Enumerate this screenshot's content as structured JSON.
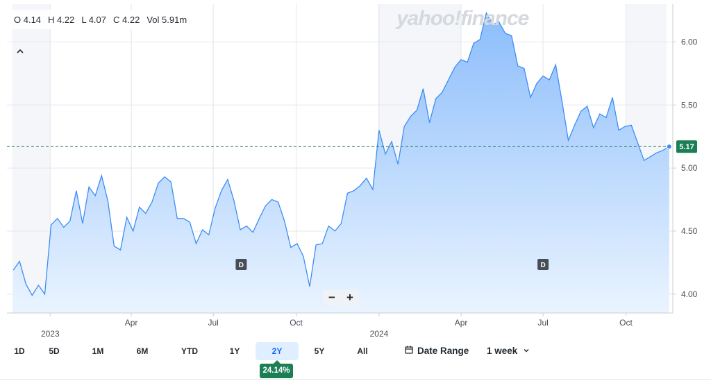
{
  "ohlc": {
    "open": "O 4.14",
    "high": "H 4.22",
    "low": "L 4.07",
    "close": "C 4.22",
    "volume": "Vol 5.91m"
  },
  "watermark": "yahoo!finance",
  "zoom": {
    "minus": "−",
    "plus": "+"
  },
  "ranges": [
    {
      "label": "1D",
      "active": false
    },
    {
      "label": "5D",
      "active": false
    },
    {
      "label": "1M",
      "active": false
    },
    {
      "label": "6M",
      "active": false
    },
    {
      "label": "YTD",
      "active": false
    },
    {
      "label": "1Y",
      "active": false
    },
    {
      "label": "2Y",
      "active": true
    },
    {
      "label": "5Y",
      "active": false
    },
    {
      "label": "All",
      "active": false
    }
  ],
  "performance_badge": "24.14%",
  "date_range_label": "Date Range",
  "interval_label": "1 week",
  "icons": {
    "collapse": "chevron-up-icon",
    "calendar": "calendar-icon",
    "dropdown": "chevron-down-icon"
  },
  "colors": {
    "line": "#3d8df5",
    "fill_top": "#8cbdfb",
    "fill_bottom": "#eaf4ff",
    "price_badge": "#1a7f55",
    "reference": "#1a7f55",
    "shade": "#f4f6f9"
  },
  "chart_data": {
    "type": "area",
    "ylim": [
      3.85,
      6.3
    ],
    "y_ticks": [
      4.0,
      4.5,
      5.0,
      5.5,
      6.0
    ],
    "y_tick_labels": [
      "4.00",
      "4.50",
      "5.00",
      "5.50",
      "6.00"
    ],
    "x_tick_labels": [
      {
        "label": "2023",
        "date": "2023-01-01"
      },
      {
        "label": "Apr",
        "date": "2023-04-01"
      },
      {
        "label": "Jul",
        "date": "2023-07-01"
      },
      {
        "label": "Oct",
        "date": "2023-10-01"
      },
      {
        "label": "2024",
        "date": "2024-01-01"
      },
      {
        "label": "Apr",
        "date": "2024-04-01"
      },
      {
        "label": "Jul",
        "date": "2024-07-01"
      },
      {
        "label": "Oct",
        "date": "2024-10-01"
      }
    ],
    "last_price_label": "5.17",
    "last_price": 5.17,
    "dividend_markers": [
      {
        "label": "D",
        "date": "2023-08-01"
      },
      {
        "label": "D",
        "date": "2024-07-01"
      }
    ],
    "shaded_periods": [
      [
        "2022-11-20",
        "2023-01-01"
      ],
      [
        "2023-12-31",
        "2024-04-01"
      ],
      [
        "2024-10-01",
        "2024-11-15"
      ]
    ],
    "series": [
      {
        "dates": [
          "2022-11-21",
          "2022-11-28",
          "2022-12-05",
          "2022-12-12",
          "2022-12-19",
          "2022-12-26",
          "2023-01-02",
          "2023-01-09",
          "2023-01-16",
          "2023-01-23",
          "2023-01-30",
          "2023-02-06",
          "2023-02-13",
          "2023-02-20",
          "2023-02-27",
          "2023-03-06",
          "2023-03-13",
          "2023-03-20",
          "2023-03-27",
          "2023-04-03",
          "2023-04-10",
          "2023-04-17",
          "2023-04-24",
          "2023-05-01",
          "2023-05-08",
          "2023-05-15",
          "2023-05-22",
          "2023-05-29",
          "2023-06-05",
          "2023-06-12",
          "2023-06-19",
          "2023-06-26",
          "2023-07-03",
          "2023-07-10",
          "2023-07-17",
          "2023-07-24",
          "2023-07-31",
          "2023-08-07",
          "2023-08-14",
          "2023-08-21",
          "2023-08-28",
          "2023-09-04",
          "2023-09-11",
          "2023-09-18",
          "2023-09-25",
          "2023-10-02",
          "2023-10-09",
          "2023-10-16",
          "2023-10-23",
          "2023-10-30",
          "2023-11-06",
          "2023-11-13",
          "2023-11-20",
          "2023-11-27",
          "2023-12-04",
          "2023-12-11",
          "2023-12-18",
          "2023-12-25",
          "2024-01-01",
          "2024-01-08",
          "2024-01-15",
          "2024-01-22",
          "2024-01-29",
          "2024-02-05",
          "2024-02-12",
          "2024-02-19",
          "2024-02-26",
          "2024-03-04",
          "2024-03-11",
          "2024-03-18",
          "2024-03-25",
          "2024-04-01",
          "2024-04-08",
          "2024-04-15",
          "2024-04-22",
          "2024-04-29",
          "2024-05-06",
          "2024-05-13",
          "2024-05-20",
          "2024-05-27",
          "2024-06-03",
          "2024-06-10",
          "2024-06-17",
          "2024-06-24",
          "2024-07-01",
          "2024-07-08",
          "2024-07-15",
          "2024-07-22",
          "2024-07-29",
          "2024-08-05",
          "2024-08-12",
          "2024-08-19",
          "2024-08-26",
          "2024-09-02",
          "2024-09-09",
          "2024-09-16",
          "2024-09-23",
          "2024-09-30",
          "2024-10-07",
          "2024-10-14",
          "2024-10-21",
          "2024-10-28",
          "2024-11-04",
          "2024-11-11",
          "2024-11-18"
        ],
        "values": [
          4.19,
          4.26,
          4.08,
          3.99,
          4.07,
          4.0,
          4.55,
          4.6,
          4.53,
          4.58,
          4.82,
          4.56,
          4.85,
          4.78,
          4.94,
          4.74,
          4.38,
          4.35,
          4.61,
          4.5,
          4.69,
          4.64,
          4.73,
          4.88,
          4.93,
          4.89,
          4.6,
          4.6,
          4.57,
          4.4,
          4.51,
          4.47,
          4.68,
          4.82,
          4.91,
          4.74,
          4.51,
          4.54,
          4.49,
          4.6,
          4.7,
          4.75,
          4.73,
          4.58,
          4.37,
          4.4,
          4.3,
          4.06,
          4.39,
          4.4,
          4.54,
          4.5,
          4.56,
          4.8,
          4.82,
          4.86,
          4.92,
          4.83,
          5.3,
          5.11,
          5.21,
          5.03,
          5.33,
          5.41,
          5.46,
          5.63,
          5.36,
          5.55,
          5.6,
          5.7,
          5.8,
          5.86,
          5.84,
          5.99,
          6.02,
          6.23,
          6.14,
          6.16,
          6.07,
          6.05,
          5.81,
          5.79,
          5.56,
          5.67,
          5.73,
          5.7,
          5.82,
          5.53,
          5.22,
          5.34,
          5.45,
          5.49,
          5.32,
          5.43,
          5.4,
          5.56,
          5.3,
          5.33,
          5.34,
          5.2,
          5.06,
          5.09,
          5.12,
          5.14,
          5.17
        ]
      }
    ]
  }
}
